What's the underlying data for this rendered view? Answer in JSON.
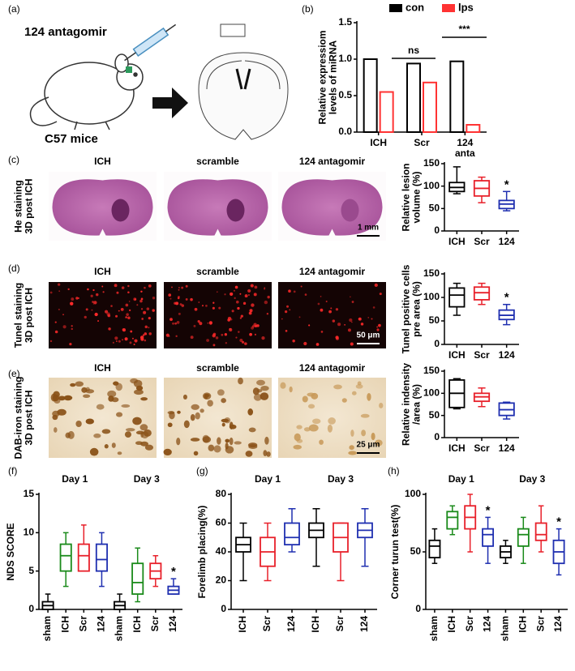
{
  "panel_labels": [
    "(a)",
    "(b)",
    "(c)",
    "(d)",
    "(e)",
    "(f)",
    "(g)",
    "(h)"
  ],
  "schematic": {
    "treatment": "124 antagomir",
    "strain": "C57 mice"
  },
  "image_rows": [
    {
      "titles": [
        "ICH",
        "scramble",
        "124 antagomir"
      ],
      "stain": [
        "He staining",
        "3D post ICH"
      ],
      "scale_bar": "1 mm"
    },
    {
      "titles": [
        "ICH",
        "scramble",
        "124 antagomir"
      ],
      "stain": [
        "Tunel staining",
        "3D post ICH"
      ],
      "scale_bar": "50 μm"
    },
    {
      "titles": [
        "ICH",
        "scramble",
        "124 antagomir"
      ],
      "stain": [
        "DAB-iron staining",
        "3D post ICH"
      ],
      "scale_bar": "25 μm"
    }
  ],
  "chart_data": [
    {
      "type": "bar",
      "ylabel": [
        "Relative expressiom",
        "levels of miRNA"
      ],
      "categories": [
        "ICH",
        "Scr",
        [
          "124",
          "anta"
        ]
      ],
      "series": [
        {
          "name": "con",
          "color": "#000000",
          "values": [
            1.0,
            0.94,
            0.97
          ]
        },
        {
          "name": "lps",
          "color": "#ff3333",
          "values": [
            0.55,
            0.68,
            0.1
          ]
        }
      ],
      "ylim": [
        0,
        1.5
      ],
      "yticks": [
        {
          "value": 0,
          "label": "0.0"
        },
        0.5,
        {
          "value": 1,
          "label": "1.0"
        },
        1.5
      ],
      "annotations": [
        "ns",
        "***"
      ]
    },
    {
      "type": "box",
      "ylabel": [
        "Relative lesion",
        "volume (%)"
      ],
      "categories": [
        "ICH",
        "Scr",
        "124"
      ],
      "colors": [
        "#000000",
        "#e8202a",
        "#1f2fb0"
      ],
      "boxes": [
        {
          "min": 83,
          "q1": 88,
          "median": 97,
          "q3": 108,
          "max": 143
        },
        {
          "min": 63,
          "q1": 78,
          "median": 95,
          "q3": 112,
          "max": 120
        },
        {
          "min": 45,
          "q1": 50,
          "median": 60,
          "q3": 68,
          "max": 88
        }
      ],
      "ylim": [
        0,
        150
      ],
      "yticks": [
        0,
        50,
        100,
        150
      ],
      "annotations": [
        "*"
      ]
    },
    {
      "type": "box",
      "ylabel": [
        "Tunel positive cells",
        "pre area (%)"
      ],
      "categories": [
        "ICH",
        "Scr",
        "124"
      ],
      "colors": [
        "#000000",
        "#e8202a",
        "#1f2fb0"
      ],
      "boxes": [
        {
          "min": 62,
          "q1": 80,
          "median": 105,
          "q3": 120,
          "max": 130
        },
        {
          "min": 85,
          "q1": 95,
          "median": 110,
          "q3": 122,
          "max": 130
        },
        {
          "min": 42,
          "q1": 53,
          "median": 62,
          "q3": 73,
          "max": 85
        }
      ],
      "ylim": [
        0,
        150
      ],
      "yticks": [
        0,
        50,
        100,
        150
      ],
      "annotations": [
        "*"
      ]
    },
    {
      "type": "box",
      "ylabel": [
        "Relative indensity",
        "/area (%)"
      ],
      "categories": [
        "ICH",
        "Scr",
        "124"
      ],
      "colors": [
        "#000000",
        "#e8202a",
        "#1f2fb0"
      ],
      "boxes": [
        {
          "min": 65,
          "q1": 68,
          "median": 100,
          "q3": 130,
          "max": 133
        },
        {
          "min": 70,
          "q1": 82,
          "median": 92,
          "q3": 100,
          "max": 112
        },
        {
          "min": 42,
          "q1": 50,
          "median": 63,
          "q3": 78,
          "max": 80
        }
      ],
      "ylim": [
        0,
        150
      ],
      "yticks": [
        0,
        50,
        100,
        150
      ]
    },
    {
      "type": "box",
      "ylabel": [
        "NDS SCORE"
      ],
      "groups": [
        "Day 1",
        "Day 3"
      ],
      "categories": [
        "sham",
        "ICH",
        "Scr",
        "124",
        "sham",
        "ICH",
        "Scr",
        "124"
      ],
      "colors": [
        "#000000",
        "#1a8a1a",
        "#e8202a",
        "#1f2fb0",
        "#000000",
        "#1a8a1a",
        "#e8202a",
        "#1f2fb0"
      ],
      "boxes": [
        {
          "min": 0,
          "q1": 0,
          "median": 0.5,
          "q3": 1,
          "max": 2
        },
        {
          "min": 3,
          "q1": 5,
          "median": 7,
          "q3": 8.5,
          "max": 10
        },
        {
          "min": 5,
          "q1": 5,
          "median": 7,
          "q3": 8.5,
          "max": 11
        },
        {
          "min": 3,
          "q1": 5,
          "median": 6.5,
          "q3": 8.5,
          "max": 10
        },
        {
          "min": 0,
          "q1": 0,
          "median": 0.5,
          "q3": 1,
          "max": 2
        },
        {
          "min": 1,
          "q1": 2,
          "median": 3.5,
          "q3": 6,
          "max": 8
        },
        {
          "min": 3,
          "q1": 4,
          "median": 5,
          "q3": 6,
          "max": 7
        },
        {
          "min": 2,
          "q1": 2,
          "median": 2.5,
          "q3": 3,
          "max": 4
        }
      ],
      "ylim": [
        0,
        15
      ],
      "yticks": [
        0,
        5,
        10,
        15
      ],
      "annotations": [
        "*"
      ]
    },
    {
      "type": "box",
      "ylabel": [
        "Forelimb placing(%)"
      ],
      "groups": [
        "Day 1",
        "Day 3"
      ],
      "categories": [
        "ICH",
        "Scr",
        "124",
        "ICH",
        "Scr",
        "124"
      ],
      "colors": [
        "#000000",
        "#e8202a",
        "#1f2fb0",
        "#000000",
        "#e8202a",
        "#1f2fb0"
      ],
      "boxes": [
        {
          "min": 20,
          "q1": 40,
          "median": 45,
          "q3": 50,
          "max": 60
        },
        {
          "min": 20,
          "q1": 30,
          "median": 40,
          "q3": 50,
          "max": 60
        },
        {
          "min": 40,
          "q1": 45,
          "median": 50,
          "q3": 60,
          "max": 70
        },
        {
          "min": 30,
          "q1": 50,
          "median": 55,
          "q3": 60,
          "max": 70
        },
        {
          "min": 20,
          "q1": 40,
          "median": 50,
          "q3": 60,
          "max": 60
        },
        {
          "min": 30,
          "q1": 50,
          "median": 55,
          "q3": 60,
          "max": 70
        }
      ],
      "ylim": [
        0,
        80
      ],
      "yticks": [
        0,
        20,
        40,
        60,
        80
      ]
    },
    {
      "type": "box",
      "ylabel": [
        "Corner turun test(%)"
      ],
      "groups": [
        "Day 1",
        "Day 3"
      ],
      "categories": [
        "sham",
        "ICH",
        "Scr",
        "124",
        "sham",
        "ICH",
        "Scr",
        "124"
      ],
      "colors": [
        "#000000",
        "#1a8a1a",
        "#e8202a",
        "#1f2fb0",
        "#000000",
        "#1a8a1a",
        "#e8202a",
        "#1f2fb0"
      ],
      "boxes": [
        {
          "min": 40,
          "q1": 45,
          "median": 55,
          "q3": 60,
          "max": 70
        },
        {
          "min": 65,
          "q1": 70,
          "median": 80,
          "q3": 85,
          "max": 90
        },
        {
          "min": 50,
          "q1": 70,
          "median": 80,
          "q3": 90,
          "max": 100
        },
        {
          "min": 40,
          "q1": 55,
          "median": 65,
          "q3": 70,
          "max": 80
        },
        {
          "min": 40,
          "q1": 45,
          "median": 50,
          "q3": 55,
          "max": 60
        },
        {
          "min": 40,
          "q1": 55,
          "median": 65,
          "q3": 70,
          "max": 80
        },
        {
          "min": 50,
          "q1": 60,
          "median": 65,
          "q3": 75,
          "max": 90
        },
        {
          "min": 30,
          "q1": 40,
          "median": 50,
          "q3": 60,
          "max": 70
        }
      ],
      "ylim": [
        0,
        100
      ],
      "yticks": [
        0,
        50,
        100
      ],
      "annotations": [
        "*",
        "*"
      ]
    }
  ]
}
